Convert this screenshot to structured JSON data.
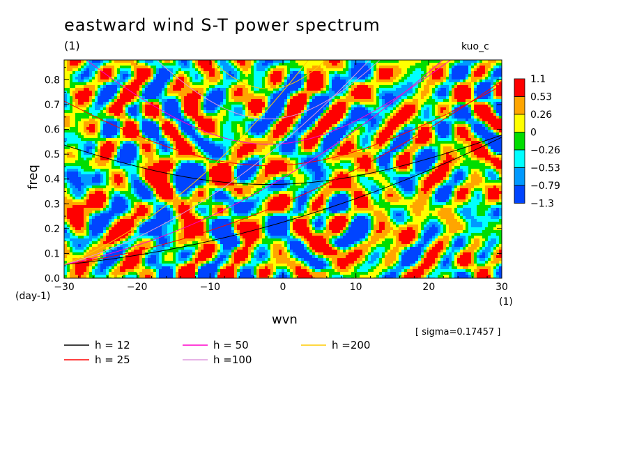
{
  "chart_data": {
    "type": "heatmap",
    "title": "eastward wind S-T power spectrum",
    "subtitle_units": "(1)",
    "run_name": "kuo_c",
    "xlabel": "wvn",
    "ylabel": "freq",
    "x_units": "(1)",
    "y_units": "(day-1)",
    "xlim": [
      -30,
      30
    ],
    "ylim": [
      0,
      0.88
    ],
    "x_ticks": [
      -30,
      -20,
      -10,
      0,
      10,
      20,
      30
    ],
    "x_tick_labels": [
      "−30",
      "−20",
      "−10",
      "0",
      "10",
      "20",
      "30"
    ],
    "y_ticks": [
      0.0,
      0.1,
      0.2,
      0.3,
      0.4,
      0.5,
      0.6,
      0.7,
      0.8
    ],
    "y_tick_labels": [
      "0.0",
      "0.1",
      "0.2",
      "0.3",
      "0.4",
      "0.5",
      "0.6",
      "0.7",
      "0.8"
    ],
    "sigma_text": "[ sigma=0.17457 ]",
    "colorbar": {
      "levels": [
        "1.1",
        "0.53",
        "0.26",
        "0",
        "−0.26",
        "−0.53",
        "−0.79",
        "−1.3"
      ],
      "colors": [
        "#ff0000",
        "#ffa500",
        "#ffff00",
        "#00dd00",
        "#00ffff",
        "#0099ff",
        "#0044ff"
      ]
    },
    "dispersion_curves": [
      {
        "name": "h = 12",
        "color": "#000000",
        "h": 12
      },
      {
        "name": "h = 25",
        "color": "#ff0000",
        "h": 25
      },
      {
        "name": "h = 50",
        "color": "#ff00cc",
        "h": 50
      },
      {
        "name": "h =100",
        "color": "#dd99dd",
        "h": 100
      },
      {
        "name": "h =200",
        "color": "#ffcc00",
        "h": 200
      }
    ],
    "field_seed": 17457,
    "hotspots": [
      {
        "x": 5.5,
        "y": 0.02,
        "value": 1.3
      },
      {
        "x": 7,
        "y": 0.11,
        "value": 1.2
      },
      {
        "x": -6,
        "y": 0.1,
        "value": 1.15
      },
      {
        "x": -7,
        "y": 0.15,
        "value": -1.0
      },
      {
        "x": -8,
        "y": 0.23,
        "value": -1.1
      },
      {
        "x": -28,
        "y": 0.3,
        "value": 0.6
      },
      {
        "x": -16,
        "y": 0.45,
        "value": 0.7
      },
      {
        "x": 14,
        "y": 0.33,
        "value": 0.6
      },
      {
        "x": 27,
        "y": 0.5,
        "value": 0.55
      },
      {
        "x": 8,
        "y": 0.42,
        "value": 0.55
      },
      {
        "x": -22,
        "y": 0.66,
        "value": 0.6
      },
      {
        "x": -27,
        "y": 0.18,
        "value": 0.55
      },
      {
        "x": -24,
        "y": 0.58,
        "value": -0.6
      },
      {
        "x": -2,
        "y": 0.66,
        "value": -0.55
      },
      {
        "x": 2,
        "y": 0.26,
        "value": -0.6
      }
    ]
  }
}
